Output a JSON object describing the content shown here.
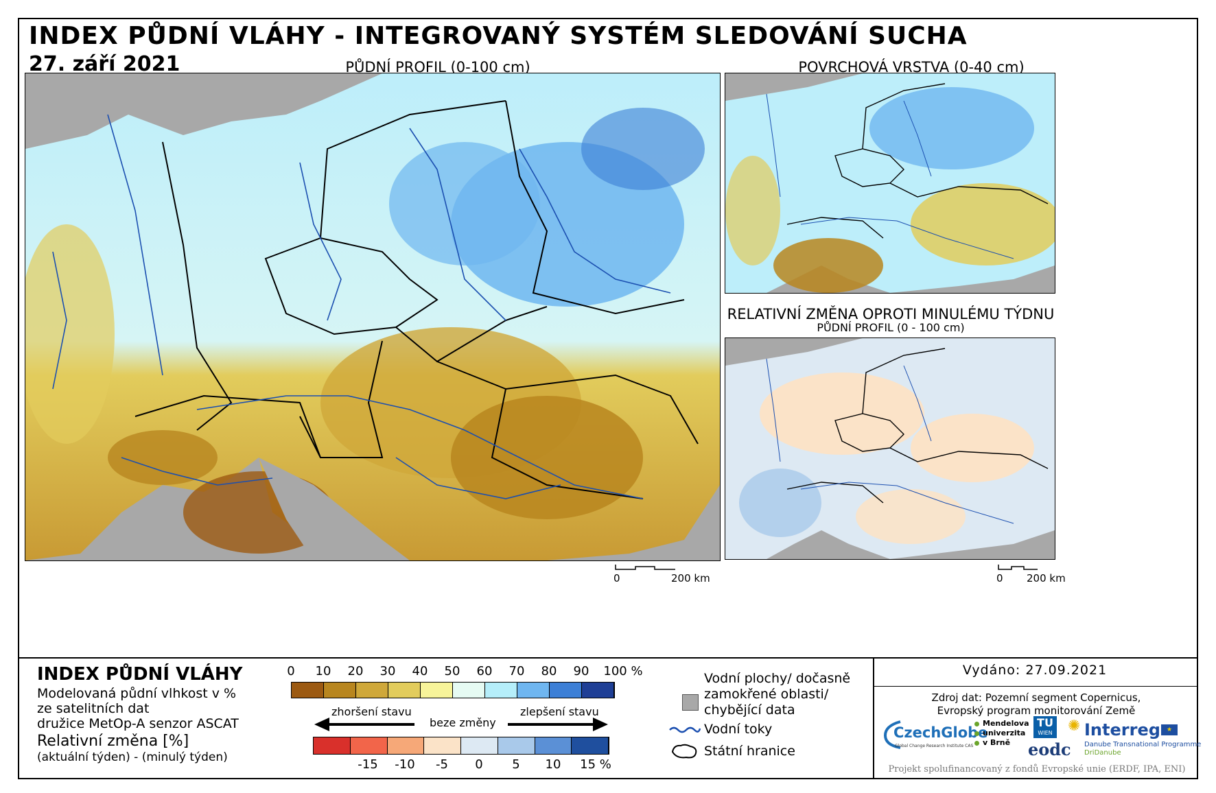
{
  "header": {
    "title": "INDEX PŮDNÍ VLÁHY - INTEGROVANÝ SYSTÉM SLEDOVÁNÍ SUCHA",
    "date": "27. září 2021"
  },
  "maps": {
    "main": {
      "label": "PŮDNÍ PROFIL (0-100 cm)"
    },
    "surface": {
      "label": "POVRCHOVÁ VRSTVA (0-40 cm)"
    },
    "change": {
      "label": "RELATIVNÍ ZMĚNA OPROTI MINULÉMU TÝDNU",
      "sublabel": "PŮDNÍ PROFIL (0 - 100 cm)"
    }
  },
  "scale_bar": {
    "start": "0",
    "end": "200 km"
  },
  "legend": {
    "title": "INDEX PŮDNÍ VLÁHY",
    "desc_line1": "Modelovaná půdní vlhkost v %",
    "desc_line2": "ze satelitních dat",
    "desc_line3": "družice MetOp-A senzor ASCAT",
    "change_title": "Relativní změna [%]",
    "change_desc": "(aktuální týden) - (minulý týden)",
    "index_ticks": [
      "0",
      "10",
      "20",
      "30",
      "40",
      "50",
      "60",
      "70",
      "80",
      "90",
      "100 %"
    ],
    "index_colors": [
      "#9c5a12",
      "#b8861f",
      "#cfa83a",
      "#e2cc5c",
      "#f7f49a",
      "#e6fbf3",
      "#b5eefa",
      "#6fb6f0",
      "#3c7fd6",
      "#1f3f96"
    ],
    "worse_label": "zhoršení stavu",
    "nochange_label": "beze změny",
    "better_label": "zlepšení stavu",
    "change_ticks": [
      "-15",
      "-10",
      "-5",
      "0",
      "5",
      "10",
      "15 %"
    ],
    "change_colors": [
      "#d9302b",
      "#f2654a",
      "#f6a878",
      "#fbe3c8",
      "#dde9f3",
      "#a9c9ea",
      "#5b90d6",
      "#1f4f9e"
    ],
    "water_areas_line1": "Vodní plochy/ dočasně",
    "water_areas_line2": "zamokřené oblasti/",
    "water_areas_line3": "chybějící data",
    "rivers": "Vodní toky",
    "borders": "Státní hranice"
  },
  "issued": "Vydáno: 27.09.2021",
  "source_line1": "Zdroj dat: Pozemní segment Copernicus,",
  "source_line2": "Evropský program monitorování Země",
  "logos": {
    "czechglobe": "CzechGlobe",
    "czechglobe_sub": "Global Change Research Institute CAS",
    "mendel1": "Mendelova",
    "mendel2": "univerzita",
    "mendel3": "v Brně",
    "tu1": "TU",
    "tu2": "WIEN",
    "eodc": "eodc",
    "interreg": "Interreg",
    "interreg_sub1": "Danube Transnational Programme",
    "interreg_sub2": "DriDanube"
  },
  "project": "Projekt spolufinancovaný z fondů Evropské unie (ERDF, IPA, ENI)"
}
